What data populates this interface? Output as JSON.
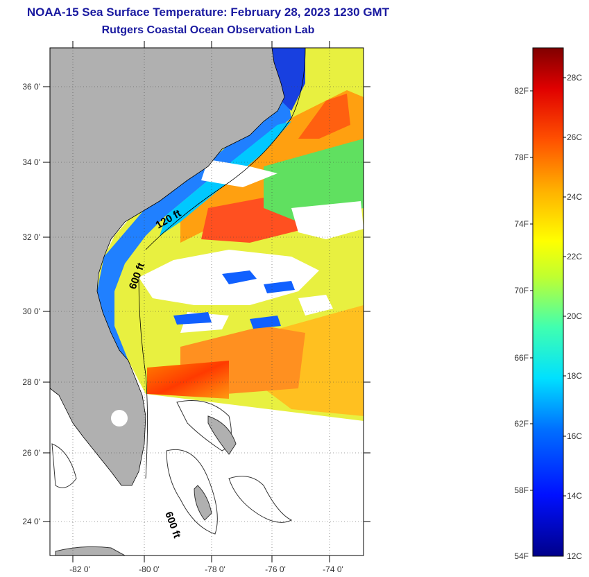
{
  "title": {
    "line1": "NOAA-15 Sea Surface Temperature:  February 28, 2023 1230 GMT",
    "line2": "Rutgers Coastal Ocean Observation Lab"
  },
  "map": {
    "lat_ticks": [
      "36 0'",
      "34 0'",
      "32 0'",
      "30 0'",
      "28 0'",
      "26 0'",
      "24 0'"
    ],
    "lon_ticks": [
      "-82 0'",
      "-80 0'",
      "-78 0'",
      "-76 0'",
      "-74 0'"
    ],
    "isobath_labels": [
      "120 ft",
      "600 ft",
      "600 ft"
    ],
    "colors": {
      "land": "#b0b0b0",
      "cloud": "#ffffff",
      "warm": "#ff2000",
      "mid": "#ffd000",
      "cool": "#1060ff"
    }
  },
  "colorbar": {
    "fahrenheit": [
      "82F",
      "78F",
      "74F",
      "70F",
      "66F",
      "62F",
      "58F",
      "54F"
    ],
    "celsius": [
      "28C",
      "26C",
      "24C",
      "22C",
      "20C",
      "18C",
      "16C",
      "14C",
      "12C"
    ]
  }
}
